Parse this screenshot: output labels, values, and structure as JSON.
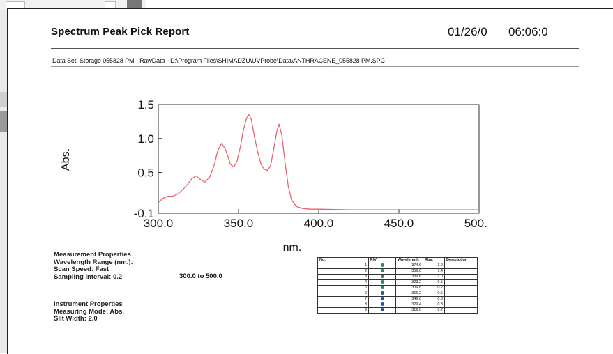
{
  "report": {
    "title": "Spectrum Peak Pick Report",
    "date": "01/26/0",
    "time": "06:06:0",
    "dataset": "Data Set: Storage 055828 PM - RawData - D:\\Program Files\\SHIMADZU\\UVProbe\\Data\\ANTHRACENE_055828 PM.SPC"
  },
  "chart_data": {
    "type": "line",
    "xlabel": "nm.",
    "ylabel": "Abs.",
    "xlim": [
      300,
      500
    ],
    "ylim": [
      -0.1,
      1.5
    ],
    "xticks": [
      "300.0",
      "350.0",
      "400.0",
      "450.0",
      "500.0"
    ],
    "yticks": [
      "1.5",
      "1.0",
      "0.5",
      "-0.1"
    ],
    "ytick_values": [
      1.5,
      1.0,
      0.5,
      -0.1
    ],
    "xtick_values": [
      300,
      350,
      400,
      450,
      500
    ],
    "grid": false,
    "line_color": "#e8636b",
    "series": [
      {
        "x": [
          300,
          303,
          306,
          309,
          312,
          315,
          318,
          321,
          323.5,
          326,
          329,
          332,
          335,
          337,
          339.5,
          342,
          345,
          347,
          349,
          351,
          353,
          355,
          356.5,
          358,
          360,
          362,
          364,
          366,
          368,
          370,
          372,
          374,
          375.3,
          377,
          379,
          381,
          383,
          386,
          390,
          395,
          400,
          420,
          440,
          460,
          480,
          500
        ],
        "y": [
          0.06,
          0.12,
          0.15,
          0.15,
          0.18,
          0.24,
          0.32,
          0.41,
          0.45,
          0.4,
          0.36,
          0.43,
          0.62,
          0.82,
          0.93,
          0.83,
          0.62,
          0.58,
          0.66,
          0.86,
          1.12,
          1.3,
          1.35,
          1.28,
          1.02,
          0.8,
          0.62,
          0.55,
          0.53,
          0.6,
          0.85,
          1.12,
          1.21,
          1.05,
          0.65,
          0.3,
          0.1,
          0.0,
          -0.03,
          -0.04,
          -0.04,
          -0.05,
          -0.05,
          -0.05,
          -0.05,
          -0.05
        ]
      }
    ]
  },
  "measurement": {
    "heading": "Measurement Properties",
    "range_label": "Wavelength Range (nm.):",
    "range_value": "300.0 to 500.0",
    "scan_speed": "Scan Speed: Fast",
    "sampling": "Sampling Interval: 0.2"
  },
  "instrument": {
    "heading": "Instrument Properties",
    "mode": "Measuring Mode:  Abs.",
    "slit": "Slit Width:    2.0"
  },
  "peak_table": {
    "headers": [
      "No.",
      "P/V",
      "Wavelength",
      "Abs.",
      "Description"
    ],
    "peak_color": "#2a8a5a",
    "valley_color": "#2a4fa8",
    "rows": [
      {
        "no": "1",
        "pv": "peak",
        "wl": "374.6",
        "abs": "1.2",
        "desc": ""
      },
      {
        "no": "2",
        "pv": "peak",
        "wl": "356.0",
        "abs": "1.4",
        "desc": ""
      },
      {
        "no": "3",
        "pv": "peak",
        "wl": "339.6",
        "abs": "1.0",
        "desc": ""
      },
      {
        "no": "4",
        "pv": "peak",
        "wl": "323.2",
        "abs": "0.5",
        "desc": ""
      },
      {
        "no": "5",
        "pv": "peak",
        "wl": "309.8",
        "abs": "0.2",
        "desc": ""
      },
      {
        "no": "6",
        "pv": "valley",
        "wl": "366.2",
        "abs": "0.5",
        "desc": ""
      },
      {
        "no": "7",
        "pv": "valley",
        "wl": "346.0",
        "abs": "0.6",
        "desc": ""
      },
      {
        "no": "8",
        "pv": "valley",
        "wl": "329.4",
        "abs": "0.3",
        "desc": ""
      },
      {
        "no": "9",
        "pv": "valley",
        "wl": "312.0",
        "abs": "0.2",
        "desc": ""
      }
    ]
  }
}
